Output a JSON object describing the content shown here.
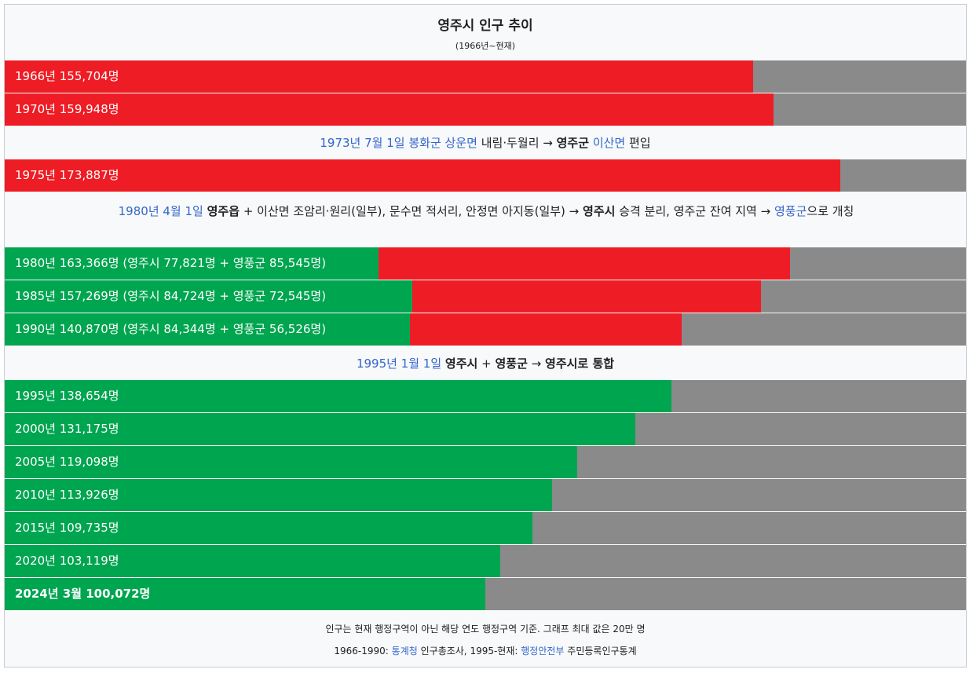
{
  "chart_data": {
    "type": "bar",
    "title": "영주시 인구 추이",
    "subtitle": "(1966년~현재)",
    "xlim": [
      0,
      200000
    ],
    "colors": {
      "pre_merge": "#ee1c24",
      "yeongju_city": "#00a550",
      "remainder": "#8a8a8a"
    },
    "bars": [
      {
        "label": "1966년 155,704명",
        "year": 1966,
        "total": 155704,
        "color": "red"
      },
      {
        "label": "1970년 159,948명",
        "year": 1970,
        "total": 159948,
        "color": "red"
      },
      {
        "label": "1975년 173,887명",
        "year": 1975,
        "total": 173887,
        "color": "red"
      },
      {
        "label": "1980년 163,366명 (영주시 77,821명 + 영풍군 85,545명)",
        "year": 1980,
        "total": 163366,
        "city": 77821,
        "county": 85545,
        "color": "split"
      },
      {
        "label": "1985년 157,269명 (영주시 84,724명 + 영풍군 72,545명)",
        "year": 1985,
        "total": 157269,
        "city": 84724,
        "county": 72545,
        "color": "split"
      },
      {
        "label": "1990년 140,870명 (영주시 84,344명 + 영풍군 56,526명)",
        "year": 1990,
        "total": 140870,
        "city": 84344,
        "county": 56526,
        "color": "split"
      },
      {
        "label": "1995년 138,654명",
        "year": 1995,
        "total": 138654,
        "color": "green"
      },
      {
        "label": "2000년 131,175명",
        "year": 2000,
        "total": 131175,
        "color": "green"
      },
      {
        "label": "2005년 119,098명",
        "year": 2005,
        "total": 119098,
        "color": "green"
      },
      {
        "label": "2010년 113,926명",
        "year": 2010,
        "total": 113926,
        "color": "green"
      },
      {
        "label": "2015년 109,735명",
        "year": 2015,
        "total": 109735,
        "color": "green"
      },
      {
        "label": "2020년 103,119명",
        "year": 2020,
        "total": 103119,
        "color": "green"
      },
      {
        "label": "2024년 3월 100,072명",
        "year": 2024,
        "total": 100072,
        "color": "green",
        "bold": true
      }
    ],
    "notes": {
      "n1973": {
        "date": "1973년 7월 1일",
        "place1": "봉화군",
        "place2": "상운면",
        "text1": "내림·두월리 →",
        "target": "영주군",
        "place3": "이산면",
        "text2": "편입"
      },
      "n1980": {
        "date": "1980년 4월 1일",
        "bold1": "영주읍",
        "text1": "+ 이산면 조암리·원리(일부), 문수면 적서리, 안정면 아지동(일부) →",
        "bold2": "영주시",
        "text2": "승격 분리, 영주군 잔여 지역 →",
        "link": "영풍군",
        "text3": "으로 개칭"
      },
      "n1995": {
        "date": "1995년 1월 1일",
        "bold1": "영주시",
        "text1": "+",
        "text2": "영풍군",
        "text3": "→",
        "bold2": "영주시로 통합"
      }
    },
    "footer": {
      "line1": "인구는 현재 행정구역이 아닌 해당 연도 행정구역 기준. 그래프 최대 값은 20만 명",
      "line2_a": "1966-1990:",
      "line2_link1": "통계청",
      "line2_b": "인구총조사, 1995-현재:",
      "line2_link2": "행정안전부",
      "line2_c": "주민등록인구통계"
    }
  }
}
